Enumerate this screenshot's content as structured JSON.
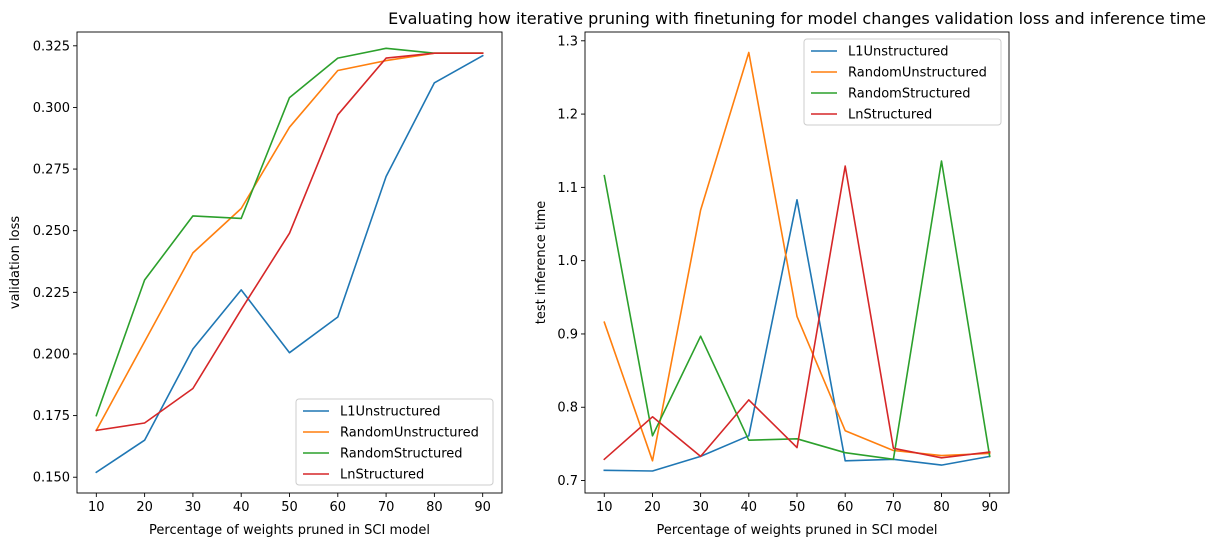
{
  "figure": {
    "title": "Evaluating how iterative pruning with finetuning for model changes validation loss and inference time"
  },
  "colors": {
    "L1Unstructured": "#1f77b4",
    "RandomUnstructured": "#ff7f0e",
    "RandomStructured": "#2ca02c",
    "LnStructured": "#d62728"
  },
  "chart_data": [
    {
      "type": "line",
      "title": "",
      "xlabel": "Percentage of weights pruned in SCI model",
      "ylabel": "validation loss",
      "x": [
        10,
        20,
        30,
        40,
        50,
        60,
        70,
        80,
        90
      ],
      "xticks": [
        10,
        20,
        30,
        40,
        50,
        60,
        70,
        80,
        90
      ],
      "yticks": [
        0.15,
        0.175,
        0.2,
        0.225,
        0.25,
        0.275,
        0.3,
        0.325
      ],
      "ytick_labels": [
        "0.150",
        "0.175",
        "0.200",
        "0.225",
        "0.250",
        "0.275",
        "0.300",
        "0.325"
      ],
      "xlim": [
        6,
        94
      ],
      "ylim": [
        0.1436,
        0.3306
      ],
      "grid": false,
      "legend_position": "lower-right",
      "series": [
        {
          "name": "L1Unstructured",
          "values": [
            0.152,
            0.165,
            0.202,
            0.226,
            0.2005,
            0.215,
            0.272,
            0.31,
            0.321
          ]
        },
        {
          "name": "RandomUnstructured",
          "values": [
            0.169,
            0.205,
            0.241,
            0.259,
            0.292,
            0.315,
            0.319,
            0.322,
            0.322
          ]
        },
        {
          "name": "RandomStructured",
          "values": [
            0.175,
            0.23,
            0.256,
            0.255,
            0.304,
            0.32,
            0.324,
            0.322,
            0.322
          ]
        },
        {
          "name": "LnStructured",
          "values": [
            0.169,
            0.172,
            0.186,
            0.218,
            0.249,
            0.297,
            0.32,
            0.322,
            0.322
          ]
        }
      ]
    },
    {
      "type": "line",
      "title": "",
      "xlabel": "Percentage of weights pruned in SCI model",
      "ylabel": "test inference time",
      "x": [
        10,
        20,
        30,
        40,
        50,
        60,
        70,
        80,
        90
      ],
      "xticks": [
        10,
        20,
        30,
        40,
        50,
        60,
        70,
        80,
        90
      ],
      "yticks": [
        0.7,
        0.8,
        0.9,
        1.0,
        1.1,
        1.2,
        1.3
      ],
      "ytick_labels": [
        "0.7",
        "0.8",
        "0.9",
        "1.0",
        "1.1",
        "1.2",
        "1.3"
      ],
      "xlim": [
        6,
        94
      ],
      "ylim": [
        0.683,
        1.312
      ],
      "grid": false,
      "legend_position": "top-right",
      "series": [
        {
          "name": "L1Unstructured",
          "values": [
            0.714,
            0.713,
            0.733,
            0.761,
            1.083,
            0.727,
            0.729,
            0.721,
            0.733
          ]
        },
        {
          "name": "RandomUnstructured",
          "values": [
            0.916,
            0.727,
            1.069,
            1.284,
            0.924,
            0.768,
            0.741,
            0.734,
            0.737
          ]
        },
        {
          "name": "RandomStructured",
          "values": [
            1.116,
            0.761,
            0.897,
            0.755,
            0.757,
            0.738,
            0.729,
            1.136,
            0.733
          ]
        },
        {
          "name": "LnStructured",
          "values": [
            0.729,
            0.787,
            0.733,
            0.81,
            0.745,
            1.129,
            0.744,
            0.731,
            0.739
          ]
        }
      ]
    }
  ]
}
